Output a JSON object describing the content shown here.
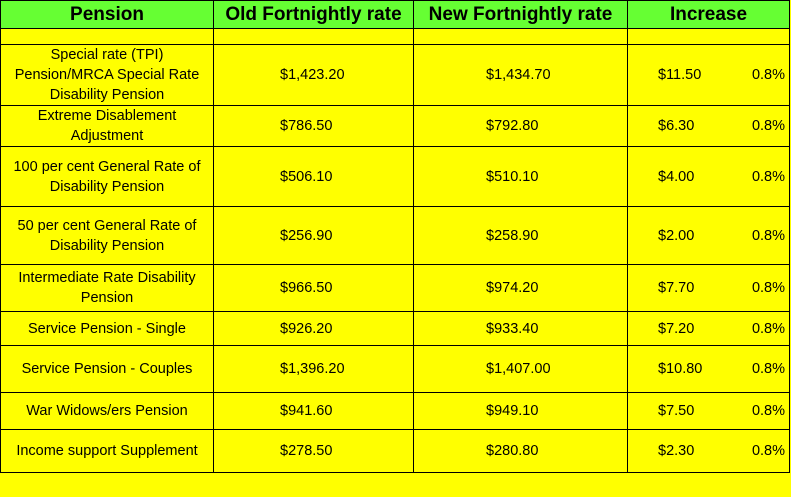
{
  "headers": {
    "pension": "Pension",
    "old": "Old Fortnightly rate",
    "new": "New Fortnightly rate",
    "increase": "Increase"
  },
  "rows": [
    {
      "pension": "Special rate (TPI) Pension/MRCA Special Rate Disability Pension",
      "old": "$1,423.20",
      "new": "$1,434.70",
      "increase": "$11.50",
      "percent": "0.8%"
    },
    {
      "pension": "Extreme Disablement Adjustment",
      "old": "$786.50",
      "new": "$792.80",
      "increase": "$6.30",
      "percent": "0.8%"
    },
    {
      "pension": "100 per cent General Rate of Disability Pension",
      "old": "$506.10",
      "new": "$510.10",
      "increase": "$4.00",
      "percent": "0.8%"
    },
    {
      "pension": "50 per cent General Rate of Disability Pension",
      "old": "$256.90",
      "new": "$258.90",
      "increase": "$2.00",
      "percent": "0.8%"
    },
    {
      "pension": "Intermediate Rate Disability Pension",
      "old": "$966.50",
      "new": "$974.20",
      "increase": "$7.70",
      "percent": "0.8%"
    },
    {
      "pension": "Service Pension - Single",
      "old": "$926.20",
      "new": "$933.40",
      "increase": "$7.20",
      "percent": "0.8%"
    },
    {
      "pension": "Service Pension - Couples",
      "old": "$1,396.20",
      "new": "$1,407.00",
      "increase": "$10.80",
      "percent": "0.8%"
    },
    {
      "pension": "War Widows/ers Pension",
      "old": "$941.60",
      "new": "$949.10",
      "increase": "$7.50",
      "percent": "0.8%"
    },
    {
      "pension": "Income support Supplement",
      "old": "$278.50",
      "new": "$280.80",
      "increase": "$2.30",
      "percent": "0.8%"
    }
  ],
  "colors": {
    "header_bg": "#66ff33",
    "body_bg": "#ffff00"
  }
}
